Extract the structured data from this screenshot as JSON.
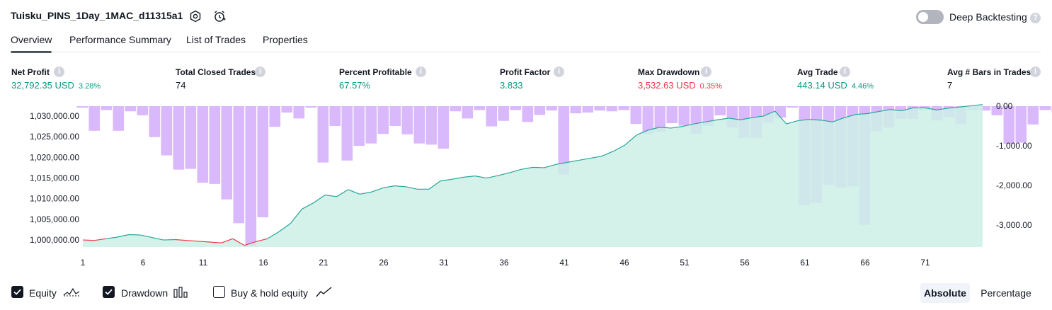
{
  "header": {
    "strategy_name": "Tuisku_PINS_1Day_1MAC_d11315a1",
    "settings_icon": "settings-icon",
    "alert_icon": "alarm-clock-icon",
    "deep_backtesting_label": "Deep Backtesting",
    "deep_backtesting_enabled": false
  },
  "tabs": [
    "Overview",
    "Performance Summary",
    "List of Trades",
    "Properties"
  ],
  "active_tab": "Overview",
  "metrics": [
    {
      "label": "Net Profit",
      "value": "32,792.35 USD",
      "pct": "3.28%",
      "color": "#089981"
    },
    {
      "label": "Total Closed Trades",
      "value": "74",
      "pct": "",
      "color": "#131722"
    },
    {
      "label": "Percent Profitable",
      "value": "67.57%",
      "pct": "",
      "color": "#089981"
    },
    {
      "label": "Profit Factor",
      "value": "3.833",
      "pct": "",
      "color": "#089981"
    },
    {
      "label": "Max Drawdown",
      "value": "3,532.63 USD",
      "pct": "0.35%",
      "color": "#f23645"
    },
    {
      "label": "Avg Trade",
      "value": "443.14 USD",
      "pct": "4.46%",
      "color": "#089981"
    },
    {
      "label": "Avg # Bars in Trades",
      "value": "7",
      "pct": "",
      "color": "#131722"
    }
  ],
  "chart_data": {
    "type": "area",
    "x_ticks": [
      "1",
      "6",
      "11",
      "16",
      "21",
      "26",
      "31",
      "36",
      "41",
      "46",
      "51",
      "56",
      "61",
      "66",
      "71"
    ],
    "left_axis": {
      "ticks": [
        "1,030,000.00",
        "1,025,000.00",
        "1,020,000.00",
        "1,015,000.00",
        "1,010,000.00",
        "1,005,000.00",
        "1,000,000.00"
      ],
      "range": [
        998300,
        1032400
      ]
    },
    "right_axis": {
      "ticks": [
        "0.00",
        "-1,000.00",
        "-2,000.00",
        "-3,000.00"
      ],
      "range": [
        -3550,
        0
      ]
    },
    "series": [
      {
        "name": "Equity",
        "values": [
          1000000,
          999900,
          1000300,
          1000700,
          1001300,
          1001200,
          1000600,
          1000000,
          1000100,
          999900,
          999700,
          999500,
          999300,
          1000300,
          998700,
          999600,
          1000300,
          1002000,
          1004000,
          1007500,
          1009000,
          1010900,
          1010500,
          1012200,
          1011100,
          1011600,
          1012600,
          1013100,
          1012900,
          1012300,
          1012300,
          1014300,
          1014700,
          1015200,
          1015500,
          1015000,
          1015600,
          1016300,
          1017100,
          1017600,
          1017500,
          1018300,
          1018800,
          1019300,
          1019800,
          1020300,
          1021500,
          1023000,
          1025400,
          1026600,
          1027300,
          1027100,
          1027500,
          1028100,
          1028600,
          1029100,
          1029500,
          1029100,
          1029600,
          1030000,
          1031200,
          1028100,
          1028900,
          1029200,
          1029000,
          1028600,
          1029600,
          1030400,
          1030600,
          1031100,
          1031600,
          1031300,
          1032000,
          1032000,
          1031500,
          1031900,
          1032200,
          1032500,
          1032800
        ]
      },
      {
        "name": "Drawdown",
        "values": [
          0,
          -620,
          -100,
          -620,
          -130,
          -230,
          -780,
          -1240,
          -1600,
          -1580,
          -1930,
          -1960,
          -2350,
          -2950,
          -3530,
          -2800,
          -520,
          -160,
          -310,
          -20,
          -1420,
          -500,
          -1370,
          -1000,
          -940,
          -700,
          -500,
          -710,
          -940,
          -970,
          -1070,
          -130,
          -310,
          -100,
          -510,
          -370,
          -100,
          -400,
          -220,
          -110,
          -1720,
          -180,
          -160,
          -110,
          -130,
          -100,
          -450,
          -700,
          -640,
          -430,
          -490,
          -700,
          -500,
          -230,
          -540,
          -800,
          -800,
          -420,
          -290,
          -30,
          -2500,
          -2440,
          -1990,
          -2050,
          -2020,
          -2990,
          -630,
          -540,
          -320,
          -320,
          -100,
          -360,
          -280,
          -450,
          -100,
          -110,
          -230,
          -950,
          -920,
          -460,
          -100,
          -160
        ]
      },
      {
        "name": "Buy & hold equity",
        "values": []
      }
    ]
  },
  "legend": {
    "equity_label": "Equity",
    "equity_checked": true,
    "drawdown_label": "Drawdown",
    "drawdown_checked": true,
    "buyhold_label": "Buy & hold equity",
    "buyhold_checked": false
  },
  "view_toggle": {
    "absolute": "Absolute",
    "percentage": "Percentage",
    "selected": "Absolute"
  },
  "colors": {
    "equity_line": "#26a69a",
    "equity_negative": "#f23645",
    "equity_fill": "#cdeee6",
    "drawdown_bar": "#d9b8fb",
    "text": "#131722"
  }
}
